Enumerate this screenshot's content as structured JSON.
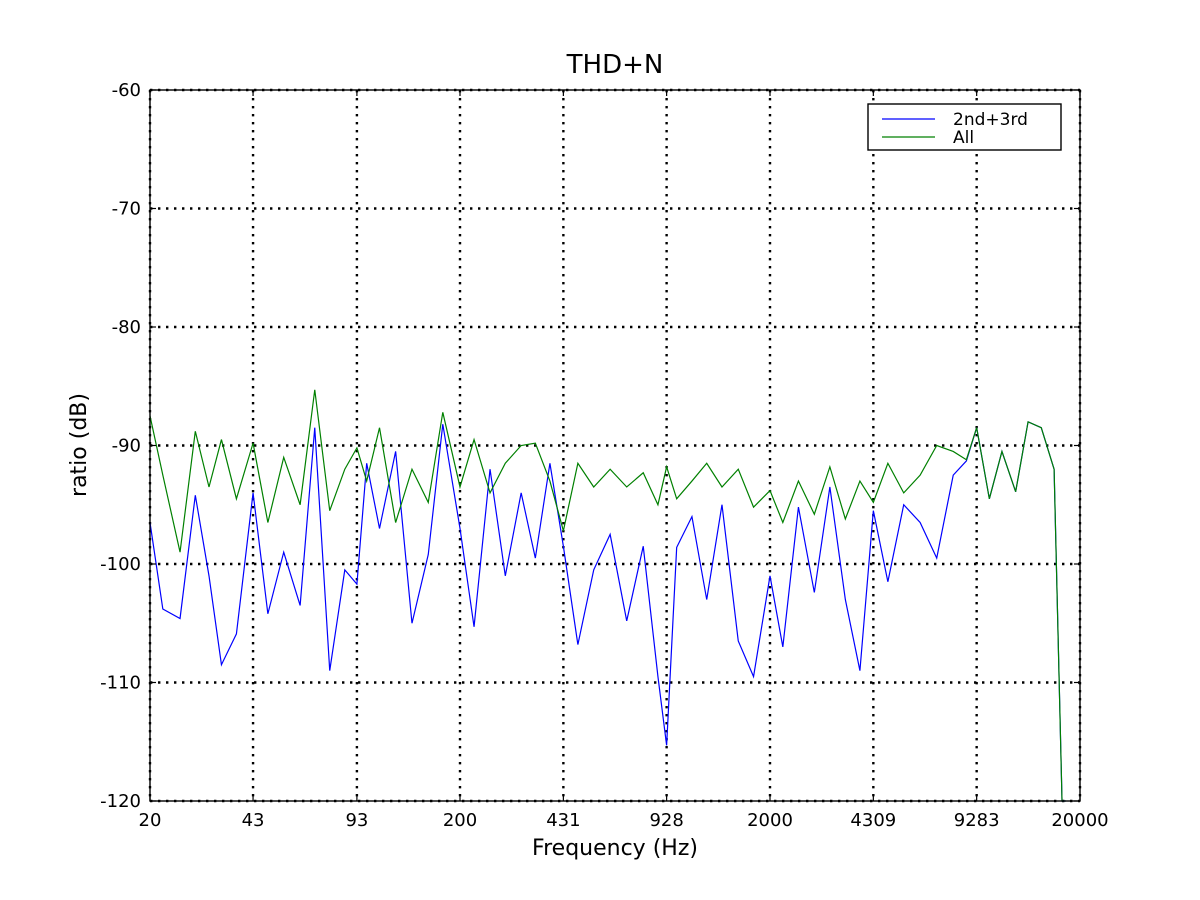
{
  "chart_data": {
    "type": "line",
    "title": "THD+N",
    "xlabel": "Frequency (Hz)",
    "ylabel": "ratio (dB)",
    "x_scale": "log",
    "xlim": [
      20,
      20000
    ],
    "ylim": [
      -120,
      -60
    ],
    "x_ticks": [
      "20",
      "43",
      "93",
      "200",
      "431",
      "928",
      "2000",
      "4309",
      "9283",
      "20000"
    ],
    "y_ticks": [
      "-60",
      "-70",
      "-80",
      "-90",
      "-100",
      "-110",
      "-120"
    ],
    "grid": true,
    "legend_position": "top-right",
    "series": [
      {
        "name": "2nd+3rd",
        "color": "#0000ff",
        "x": [
          20,
          22,
          25,
          28,
          31,
          34,
          38,
          43,
          48,
          54,
          61,
          68,
          76,
          85,
          93,
          100,
          110,
          124,
          140,
          158,
          176,
          200,
          222,
          250,
          280,
          315,
          350,
          390,
          431,
          480,
          540,
          610,
          690,
          780,
          870,
          928,
          1000,
          1120,
          1250,
          1400,
          1580,
          1770,
          2000,
          2200,
          2470,
          2780,
          3120,
          3500,
          3900,
          4309,
          4800,
          5400,
          6100,
          6900,
          7800,
          8600,
          9283,
          10200,
          11200,
          12400,
          13600,
          15000,
          16500,
          17500,
          18000
        ],
        "y": [
          -96.5,
          -103.8,
          -104.6,
          -94.2,
          -101.0,
          -108.5,
          -105.9,
          -94.0,
          -104.2,
          -99.0,
          -103.5,
          -88.5,
          -109.0,
          -100.5,
          -101.7,
          -91.5,
          -97.0,
          -90.5,
          -105.0,
          -99.2,
          -88.2,
          -97.0,
          -105.3,
          -92.0,
          -101.0,
          -94.0,
          -99.5,
          -91.5,
          -98.5,
          -106.8,
          -100.5,
          -97.5,
          -104.8,
          -98.5,
          -109.5,
          -115.3,
          -98.6,
          -96.0,
          -103.0,
          -95.0,
          -106.5,
          -109.5,
          -101.0,
          -107.0,
          -95.2,
          -102.4,
          -93.5,
          -103.0,
          -109.0,
          -95.5,
          -101.5,
          -95.0,
          -96.5,
          -99.5,
          -92.5,
          -91.3,
          -88.5,
          -94.5,
          -90.5,
          -93.9,
          -88.0,
          -88.5,
          -92.0,
          -120.0,
          -120.0
        ]
      },
      {
        "name": "All",
        "color": "#008000",
        "x": [
          20,
          22,
          25,
          28,
          31,
          34,
          38,
          43,
          48,
          54,
          61,
          68,
          76,
          85,
          93,
          100,
          110,
          124,
          140,
          158,
          176,
          200,
          222,
          250,
          280,
          315,
          350,
          390,
          431,
          480,
          540,
          610,
          690,
          780,
          870,
          928,
          1000,
          1120,
          1250,
          1400,
          1580,
          1770,
          2000,
          2200,
          2470,
          2780,
          3120,
          3500,
          3900,
          4309,
          4800,
          5400,
          6100,
          6900,
          7800,
          8600,
          9283,
          10200,
          11200,
          12400,
          13600,
          15000,
          16500,
          17500,
          18000
        ],
        "y": [
          -87.5,
          -92.5,
          -99.0,
          -88.8,
          -93.5,
          -89.5,
          -94.5,
          -89.8,
          -96.5,
          -91.0,
          -95.0,
          -85.3,
          -95.5,
          -92.0,
          -90.2,
          -93.0,
          -88.5,
          -96.5,
          -92.0,
          -94.8,
          -87.2,
          -93.5,
          -89.5,
          -94.0,
          -91.5,
          -90.0,
          -89.8,
          -93.0,
          -97.2,
          -91.5,
          -93.5,
          -92.0,
          -93.5,
          -92.3,
          -95.0,
          -91.8,
          -94.5,
          -93.0,
          -91.5,
          -93.5,
          -92.0,
          -95.2,
          -93.8,
          -96.5,
          -93.0,
          -95.8,
          -91.8,
          -96.2,
          -93.0,
          -94.8,
          -91.5,
          -94.0,
          -92.5,
          -90.0,
          -90.5,
          -91.2,
          -88.5,
          -94.5,
          -90.5,
          -93.9,
          -88.0,
          -88.5,
          -92.0,
          -120.0,
          -120.0
        ]
      }
    ]
  }
}
